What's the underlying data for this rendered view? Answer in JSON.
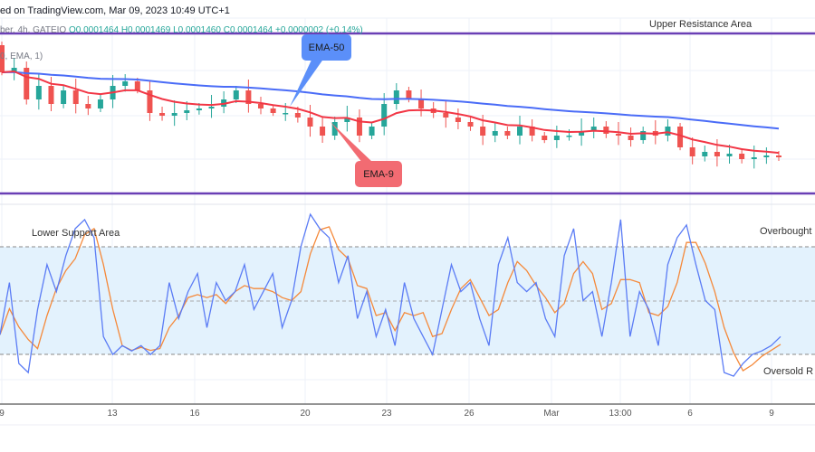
{
  "header": {
    "publish_text": "ed on TradingView.com, Mar 09, 2023 10:49 UTC+1"
  },
  "legend": {
    "symbol_text": "ber, 4h, GATEIO",
    "open": "O0.0001464",
    "high": "H0.0001469",
    "low": "L0.0001460",
    "close": "C0.0001464",
    "change": "+0.0000002 (+0.14%)",
    "indicator_text": "0, EMA, 1)"
  },
  "annotations": {
    "upper_resistance": "Upper Resistance Area",
    "lower_support": "Lower Support Area",
    "overbought": "Overbought",
    "oversold": "Oversold R",
    "ema50": "EMA-50",
    "ema9": "EMA-9"
  },
  "colors": {
    "up": "#26a69a",
    "down": "#ef5350",
    "ema50": "#4a6cf7",
    "ema9": "#f23645",
    "resistance_line": "#6a3fb5",
    "stoch_k": "#5b7cf5",
    "stoch_d": "#f5893a",
    "stoch_band": "#e3f2fd",
    "ema50_callout": "#5b8ff9",
    "ema9_callout": "#f26b72"
  },
  "chart_data": [
    {
      "type": "candlestick",
      "title": "",
      "x_tick_labels": [
        "9",
        "13",
        "16",
        "20",
        "23",
        "26",
        "Mar",
        "13:00",
        "6",
        "9"
      ],
      "close": [
        0.00014734,
        0.00014739,
        0.00014704,
        0.00014719,
        0.00014699,
        0.00014714,
        0.00014699,
        0.00014694,
        0.00014704,
        0.00014719,
        0.00014724,
        0.00014714,
        0.00014689,
        0.00014686,
        0.00014689,
        0.00014692,
        0.00014694,
        0.00014696,
        0.00014704,
        0.00014714,
        0.00014699,
        0.00014694,
        0.00014689,
        0.00014689,
        0.00014684,
        0.00014674,
        0.00014664,
        0.00014679,
        0.00014684,
        0.00014664,
        0.00014674,
        0.00014699,
        0.00014714,
        0.00014704,
        0.00014694,
        0.00014689,
        0.00014684,
        0.00014679,
        0.00014674,
        0.00014664,
        0.00014669,
        0.00014664,
        0.00014674,
        0.00014664,
        0.00014659,
        0.00014664,
        0.00014664,
        0.00014669,
        0.00014674,
        0.00014666,
        0.00014664,
        0.00014659,
        0.00014669,
        0.00014664,
        0.00014674,
        0.00014651,
        0.00014641,
        0.00014646,
        0.00014641,
        0.00014644,
        0.00014638,
        0.0001464,
        0.00014642,
        0.0001464
      ],
      "indicators": [
        "EMA-50",
        "EMA-9"
      ],
      "horizontal_levels": [
        "Upper Resistance Area",
        "Lower Support Area"
      ]
    },
    {
      "type": "line",
      "title": "",
      "indicator": "Stochastic",
      "ylim": [
        0,
        100
      ],
      "levels": [
        20,
        50,
        80
      ],
      "level_labels": {
        "80": "Overbought",
        "20": "Oversold R"
      },
      "k": [
        31,
        60,
        15,
        10,
        45,
        70,
        55,
        75,
        90,
        95,
        85,
        30,
        20,
        25,
        22,
        25,
        20,
        25,
        60,
        40,
        55,
        65,
        35,
        60,
        50,
        55,
        70,
        45,
        55,
        65,
        35,
        50,
        80,
        98,
        90,
        85,
        60,
        75,
        40,
        55,
        30,
        45,
        25,
        60,
        40,
        30,
        20,
        45,
        70,
        55,
        60,
        40,
        25,
        70,
        85,
        60,
        55,
        60,
        40,
        30,
        75,
        90,
        50,
        55,
        30,
        60,
        95,
        30,
        55,
        45,
        25,
        70,
        85,
        92,
        70,
        50,
        45,
        10,
        8,
        15,
        20,
        22,
        25,
        30
      ]
    }
  ]
}
